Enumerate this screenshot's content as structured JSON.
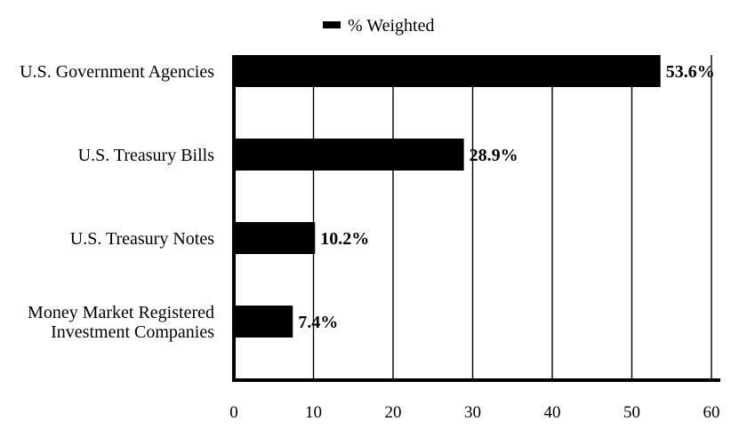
{
  "chart_data": {
    "type": "bar",
    "orientation": "horizontal",
    "categories": [
      "U.S. Government Agencies",
      "U.S. Treasury Bills",
      "U.S. Treasury Notes",
      "Money Market Registered\nInvestment Companies"
    ],
    "series": [
      {
        "name": "% Weighted",
        "values": [
          53.6,
          28.9,
          10.2,
          7.4
        ],
        "data_labels": [
          "53.6%",
          "28.9%",
          "10.2%",
          "7.4%"
        ],
        "color": "#000000"
      }
    ],
    "xlim": [
      0,
      60
    ],
    "xticks": [
      0,
      10,
      20,
      30,
      40,
      50,
      60
    ],
    "xtick_labels": [
      "0",
      "10",
      "20",
      "30",
      "40",
      "50",
      "60"
    ],
    "grid": "vertical",
    "legend": "top-center",
    "title": "",
    "xlabel": "",
    "ylabel": ""
  }
}
